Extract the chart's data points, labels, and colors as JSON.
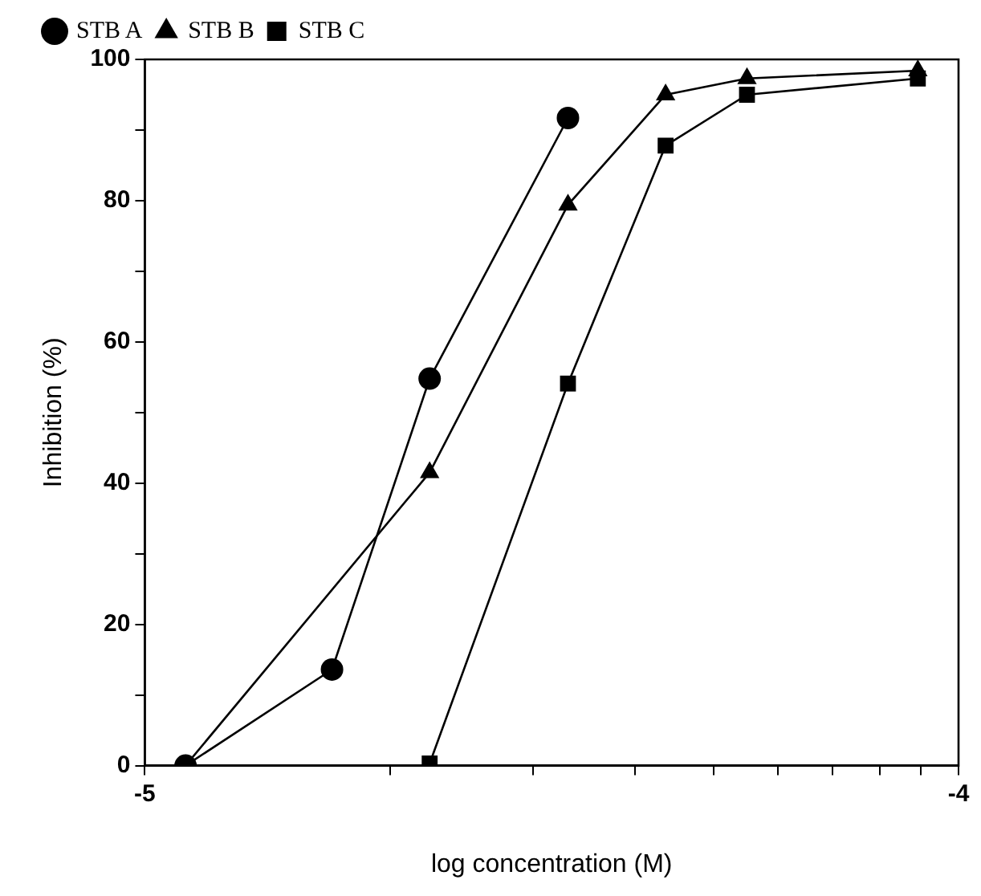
{
  "chart_data": {
    "type": "line",
    "xlabel": "log concentration (M)",
    "ylabel": "Inhibition (%)",
    "legend": "top left",
    "grid": false,
    "xlim": [
      -5,
      -4
    ],
    "xticks": [
      -5,
      {
        "value": -4.699,
        "label": null
      },
      {
        "value": -4.523,
        "label": null
      },
      {
        "value": -4.398,
        "label": null
      },
      {
        "value": -4.301,
        "label": null
      },
      {
        "value": -4.222,
        "label": null
      },
      {
        "value": -4.155,
        "label": null
      },
      {
        "value": -4.097,
        "label": null
      },
      {
        "value": -4.046,
        "label": null
      },
      -4
    ],
    "ylim": [
      0,
      100
    ],
    "yticks": [
      0,
      {
        "value": 10,
        "label": null
      },
      20,
      {
        "value": 30,
        "label": null
      },
      40,
      {
        "value": 50,
        "label": null
      },
      60,
      {
        "value": 70,
        "label": null
      },
      80,
      {
        "value": 90,
        "label": null
      },
      100
    ],
    "series": [
      {
        "name": "STB A",
        "color": "#000000",
        "marker": "circle",
        "x": [
          -4.95,
          -4.77,
          -4.65,
          -4.48
        ],
        "values": [
          0,
          13.6,
          54.8,
          91.7
        ]
      },
      {
        "name": "STB B",
        "color": "#000000",
        "marker": "triangle",
        "x": [
          -4.95,
          -4.65,
          -4.48,
          -4.36,
          -4.26,
          -4.05
        ],
        "values": [
          0,
          41.5,
          79.4,
          95,
          97.3,
          98.4
        ]
      },
      {
        "name": "STB C",
        "color": "#000000",
        "marker": "square",
        "x": [
          -4.65,
          -4.48,
          -4.36,
          -4.26,
          -4.05
        ],
        "values": [
          0.3,
          54.1,
          87.8,
          95,
          97.3
        ]
      }
    ]
  }
}
